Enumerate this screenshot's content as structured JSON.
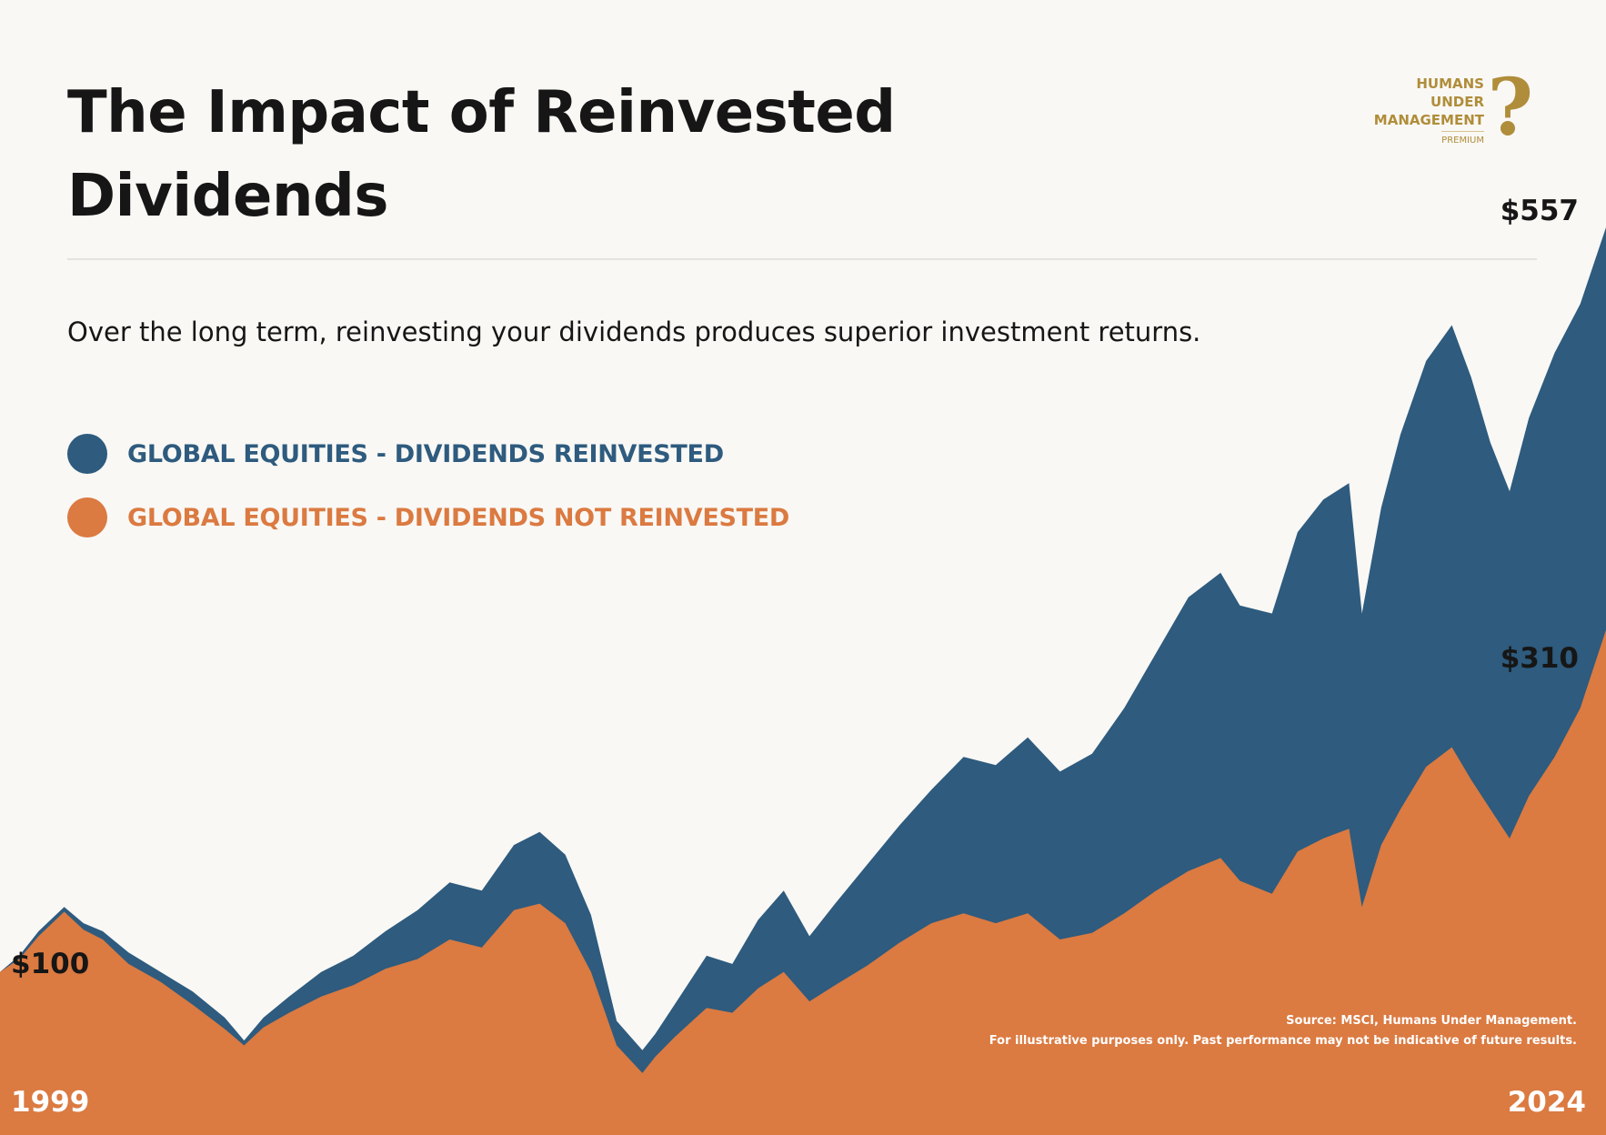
{
  "header": {
    "title": "The Impact of Reinvested Dividends",
    "subtitle": "Over the long term, reinvesting your dividends produces superior investment returns."
  },
  "logo": {
    "line1": "HUMANS",
    "line2": "UNDER",
    "line3": "MANAGEMENT",
    "line4": "PREMIUM",
    "mark": "?"
  },
  "legend": [
    {
      "label": "GLOBAL EQUITIES - DIVIDENDS REINVESTED",
      "color": "#2e5b7e"
    },
    {
      "label": "GLOBAL EQUITIES - DIVIDENDS NOT REINVESTED",
      "color": "#db7a41"
    }
  ],
  "labels": {
    "start_value": "$100",
    "end_reinvested": "$557",
    "end_not_reinvested": "$310",
    "start_year": "1999",
    "end_year": "2024"
  },
  "source": {
    "line1": "Source: MSCI, Humans Under Management.",
    "line2": "For illustrative purposes only. Past performance may not be indicative of future results."
  },
  "chart_data": {
    "type": "area",
    "title": "The Impact of Reinvested Dividends",
    "x_range": [
      "1999",
      "2024"
    ],
    "ylim": [
      0,
      600
    ],
    "grid": false,
    "legend_position": "top-left",
    "series": [
      {
        "name": "GLOBAL EQUITIES - DIVIDENDS REINVESTED",
        "color": "#2e5b7e",
        "x": [
          1999.0,
          1999.3,
          1999.6,
          2000.0,
          2000.3,
          2000.6,
          2001.0,
          2001.5,
          2002.0,
          2002.5,
          2002.8,
          2003.1,
          2003.5,
          2004.0,
          2004.5,
          2005.0,
          2005.5,
          2006.0,
          2006.5,
          2007.0,
          2007.4,
          2007.8,
          2008.2,
          2008.6,
          2009.0,
          2009.2,
          2009.5,
          2010.0,
          2010.4,
          2010.8,
          2011.2,
          2011.6,
          2012.0,
          2012.5,
          2013.0,
          2013.5,
          2014.0,
          2014.5,
          2015.0,
          2015.5,
          2016.0,
          2016.5,
          2017.0,
          2017.5,
          2018.0,
          2018.3,
          2018.8,
          2019.2,
          2019.6,
          2020.0,
          2020.2,
          2020.5,
          2020.8,
          2021.2,
          2021.6,
          2021.9,
          2022.2,
          2022.5,
          2022.8,
          2023.2,
          2023.6,
          2024.0
        ],
        "values": [
          100,
          110,
          125,
          140,
          130,
          125,
          112,
          100,
          88,
          72,
          58,
          72,
          85,
          100,
          110,
          125,
          138,
          155,
          150,
          178,
          186,
          172,
          135,
          70,
          52,
          62,
          80,
          110,
          105,
          132,
          150,
          122,
          142,
          166,
          190,
          212,
          232,
          227,
          244,
          223,
          234,
          262,
          296,
          330,
          345,
          325,
          320,
          370,
          390,
          400,
          320,
          385,
          430,
          475,
          497,
          465,
          425,
          395,
          440,
          480,
          510,
          557
        ]
      },
      {
        "name": "GLOBAL EQUITIES - DIVIDENDS NOT REINVESTED",
        "color": "#db7a41",
        "x": [
          1999.0,
          1999.3,
          1999.6,
          2000.0,
          2000.3,
          2000.6,
          2001.0,
          2001.5,
          2002.0,
          2002.5,
          2002.8,
          2003.1,
          2003.5,
          2004.0,
          2004.5,
          2005.0,
          2005.5,
          2006.0,
          2006.5,
          2007.0,
          2007.4,
          2007.8,
          2008.2,
          2008.6,
          2009.0,
          2009.2,
          2009.5,
          2010.0,
          2010.4,
          2010.8,
          2011.2,
          2011.6,
          2012.0,
          2012.5,
          2013.0,
          2013.5,
          2014.0,
          2014.5,
          2015.0,
          2015.5,
          2016.0,
          2016.5,
          2017.0,
          2017.5,
          2018.0,
          2018.3,
          2018.8,
          2019.2,
          2019.6,
          2020.0,
          2020.2,
          2020.5,
          2020.8,
          2021.2,
          2021.6,
          2021.9,
          2022.2,
          2022.5,
          2022.8,
          2023.2,
          2023.6,
          2024.0
        ],
        "values": [
          100,
          108,
          122,
          137,
          126,
          120,
          105,
          94,
          80,
          65,
          55,
          66,
          75,
          85,
          92,
          102,
          108,
          120,
          115,
          138,
          142,
          130,
          100,
          55,
          38,
          48,
          60,
          78,
          75,
          90,
          100,
          82,
          92,
          104,
          118,
          130,
          136,
          130,
          136,
          120,
          124,
          136,
          150,
          162,
          170,
          156,
          148,
          174,
          182,
          188,
          140,
          178,
          200,
          226,
          238,
          218,
          200,
          182,
          208,
          232,
          262,
          310
        ]
      }
    ]
  }
}
